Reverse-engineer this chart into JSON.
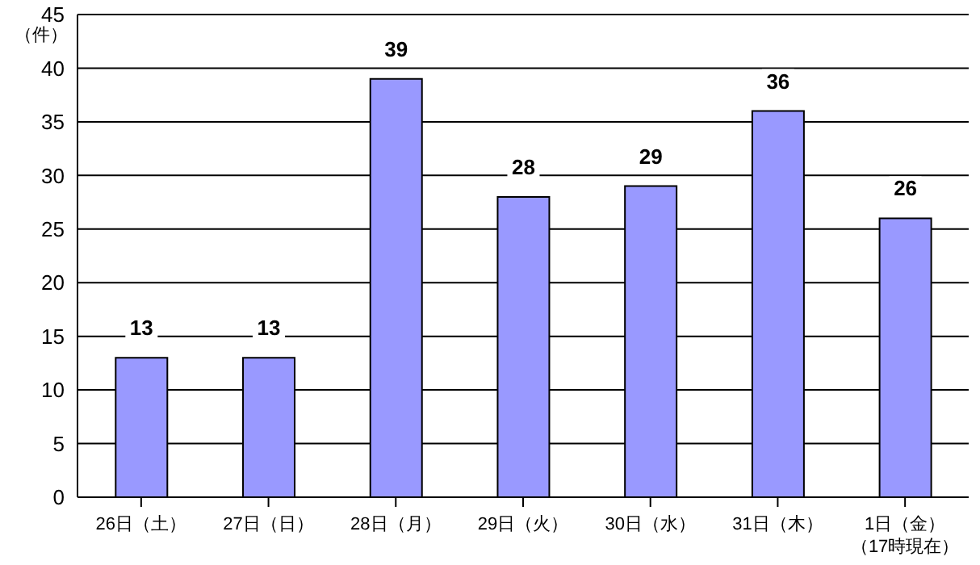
{
  "chart_data": {
    "type": "bar",
    "ylabel": "（件）",
    "categories": [
      "26日（土）",
      "27日（日）",
      "28日（月）",
      "29日（火）",
      "30日（水）",
      "31日（木）",
      "1日（金）（17時現在）"
    ],
    "values": [
      13,
      13,
      39,
      28,
      29,
      36,
      26
    ],
    "color": "#9999ff",
    "ylim": [
      0,
      45
    ],
    "yticks": [
      0,
      5,
      10,
      15,
      20,
      25,
      30,
      35,
      40,
      45
    ],
    "grid": "y",
    "data_labels": true
  }
}
